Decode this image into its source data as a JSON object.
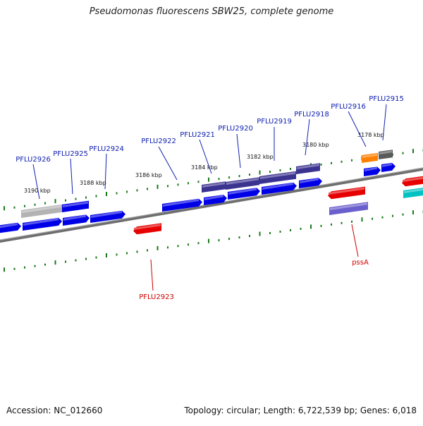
{
  "title": "Pseudomonas fluorescens SBW25, complete genome",
  "accession": "Accession: NC_012660",
  "summary": "Topology: circular; Length: 6,722,539 bp; Genes: 6,018",
  "ticks": [
    "3190 kbp",
    "3188 kbp",
    "3186 kbp",
    "3184 kbp",
    "3182 kbp",
    "3180 kbp",
    "3178 kbp"
  ],
  "upper_genes": [
    "PFLU2926",
    "PFLU2925",
    "PFLU2924",
    "PFLU2922",
    "PFLU2921",
    "PFLU2920",
    "PFLU2919",
    "PFLU2918",
    "PFLU2916",
    "PFLU2915"
  ],
  "lower_genes": [
    "PFLU2923",
    "pssA"
  ],
  "colors": {
    "gene_blue": "#0000e6",
    "gene_purple": "#3b3390",
    "gene_red": "#e60000",
    "gene_lavender": "#6a5fcc",
    "gene_orange": "#ff8000",
    "gene_gray": "#b3b3b3",
    "gene_dark_gray": "#5a5a5a",
    "gene_teal": "#00c2c2",
    "backbone": "#808080",
    "tick_green": "#1a7a1a",
    "label_upper": "#1020b0",
    "label_lower": "#cc0000"
  }
}
